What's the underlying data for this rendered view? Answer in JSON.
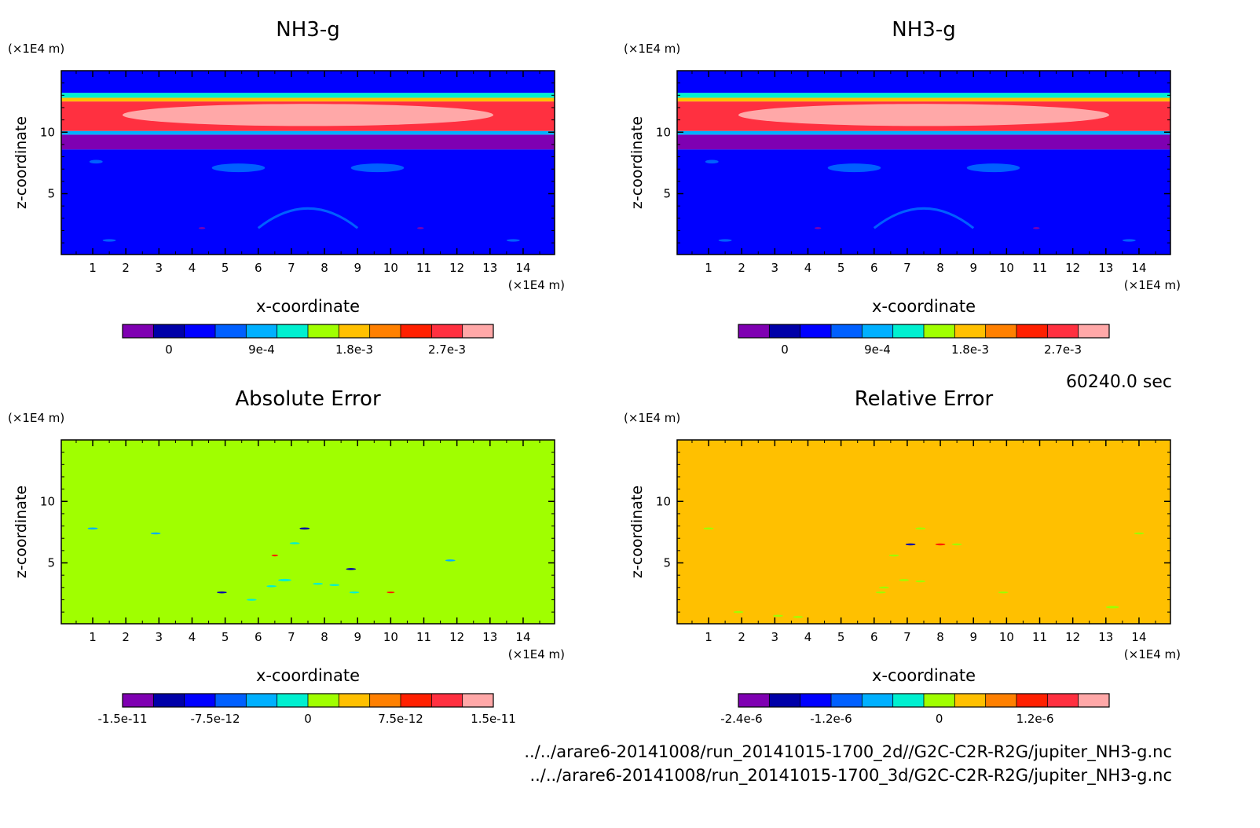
{
  "time_label": "60240.0 sec",
  "file_paths": [
    "../../arare6-20141008/run_20141015-1700_2d//G2C-C2R-R2G/jupiter_NH3-g.nc",
    "../../arare6-20141008/run_20141015-1700_3d/G2C-C2R-R2G/jupiter_NH3-g.nc"
  ],
  "chart_data": [
    {
      "type": "heatmap",
      "title": "NH3-g",
      "xlabel": "x-coordinate",
      "ylabel": "z-coordinate",
      "x_unit": "(×1E4 m)",
      "y_unit": "(×1E4 m)",
      "x_ticks": [
        1,
        2,
        3,
        4,
        5,
        6,
        7,
        8,
        9,
        10,
        11,
        12,
        13,
        14
      ],
      "y_ticks": [
        5,
        10
      ],
      "xlim": [
        0.05,
        14.95
      ],
      "ylim": [
        0.05,
        15
      ],
      "colorbar": {
        "colors": [
          "#7f00b2",
          "#0000a8",
          "#0000ff",
          "#0060ff",
          "#00b0ff",
          "#00f0d0",
          "#a0ff00",
          "#ffc000",
          "#ff8000",
          "#ff2000",
          "#ff3040",
          "#ffa8a8"
        ],
        "tick_values": [
          "0",
          "9e-4",
          "1.8e-3",
          "2.7e-3"
        ],
        "tick_positions": [
          1.5,
          4.5,
          7.5,
          10.5
        ]
      },
      "bands": [
        {
          "z0": 0.05,
          "z1": 8.6,
          "color": "#0000ff"
        },
        {
          "z0": 8.6,
          "z1": 9.8,
          "color": "#7f00b2"
        },
        {
          "z0": 9.8,
          "z1": 10.1,
          "color": "#00b0ff"
        },
        {
          "z0": 10.1,
          "z1": 12.5,
          "color": "#ff3040"
        },
        {
          "z0": 12.5,
          "z1": 12.8,
          "color": "#ffc000"
        },
        {
          "z0": 12.8,
          "z1": 13.2,
          "color": "#00f0d0"
        },
        {
          "z0": 13.2,
          "z1": 15.0,
          "color": "#0000ff"
        }
      ],
      "blobs": [
        {
          "x": 7.5,
          "z": 11.4,
          "rx": 5.6,
          "rz": 0.9,
          "color": "#ffa8a8"
        },
        {
          "x": 7.5,
          "z": 7.0,
          "rx": 6.0,
          "rz": 0.8,
          "color": "#0000ff"
        },
        {
          "x": 5.4,
          "z": 7.1,
          "rx": 0.8,
          "rz": 0.35,
          "color": "#0060ff"
        },
        {
          "x": 9.6,
          "z": 7.1,
          "rx": 0.8,
          "rz": 0.35,
          "color": "#0060ff"
        },
        {
          "x": 1.1,
          "z": 7.6,
          "rx": 0.2,
          "rz": 0.15,
          "color": "#0060ff"
        },
        {
          "x": 4.3,
          "z": 2.2,
          "rx": 0.1,
          "rz": 0.08,
          "color": "#7f00b2"
        },
        {
          "x": 10.9,
          "z": 2.2,
          "rx": 0.1,
          "rz": 0.08,
          "color": "#7f00b2"
        },
        {
          "x": 1.5,
          "z": 1.2,
          "rx": 0.2,
          "rz": 0.1,
          "color": "#0060ff"
        },
        {
          "x": 13.7,
          "z": 1.2,
          "rx": 0.2,
          "rz": 0.1,
          "color": "#0060ff"
        }
      ],
      "arc": {
        "x0": 6.0,
        "x1": 9.0,
        "z_top": 3.8,
        "z_base": 2.2,
        "color": "#0060ff"
      }
    },
    {
      "type": "heatmap",
      "title": "NH3-g",
      "xlabel": "x-coordinate",
      "ylabel": "z-coordinate",
      "x_unit": "(×1E4 m)",
      "y_unit": "(×1E4 m)",
      "x_ticks": [
        1,
        2,
        3,
        4,
        5,
        6,
        7,
        8,
        9,
        10,
        11,
        12,
        13,
        14
      ],
      "y_ticks": [
        5,
        10
      ],
      "xlim": [
        0.05,
        14.95
      ],
      "ylim": [
        0.05,
        15
      ],
      "colorbar": {
        "colors": [
          "#7f00b2",
          "#0000a8",
          "#0000ff",
          "#0060ff",
          "#00b0ff",
          "#00f0d0",
          "#a0ff00",
          "#ffc000",
          "#ff8000",
          "#ff2000",
          "#ff3040",
          "#ffa8a8"
        ],
        "tick_values": [
          "0",
          "9e-4",
          "1.8e-3",
          "2.7e-3"
        ],
        "tick_positions": [
          1.5,
          4.5,
          7.5,
          10.5
        ]
      },
      "bands": [
        {
          "z0": 0.05,
          "z1": 8.6,
          "color": "#0000ff"
        },
        {
          "z0": 8.6,
          "z1": 9.8,
          "color": "#7f00b2"
        },
        {
          "z0": 9.8,
          "z1": 10.1,
          "color": "#00b0ff"
        },
        {
          "z0": 10.1,
          "z1": 12.5,
          "color": "#ff3040"
        },
        {
          "z0": 12.5,
          "z1": 12.8,
          "color": "#ffc000"
        },
        {
          "z0": 12.8,
          "z1": 13.2,
          "color": "#00f0d0"
        },
        {
          "z0": 13.2,
          "z1": 15.0,
          "color": "#0000ff"
        }
      ],
      "blobs": [
        {
          "x": 7.5,
          "z": 11.4,
          "rx": 5.6,
          "rz": 0.9,
          "color": "#ffa8a8"
        },
        {
          "x": 7.5,
          "z": 7.0,
          "rx": 6.0,
          "rz": 0.8,
          "color": "#0000ff"
        },
        {
          "x": 5.4,
          "z": 7.1,
          "rx": 0.8,
          "rz": 0.35,
          "color": "#0060ff"
        },
        {
          "x": 9.6,
          "z": 7.1,
          "rx": 0.8,
          "rz": 0.35,
          "color": "#0060ff"
        },
        {
          "x": 1.1,
          "z": 7.6,
          "rx": 0.2,
          "rz": 0.15,
          "color": "#0060ff"
        },
        {
          "x": 4.3,
          "z": 2.2,
          "rx": 0.1,
          "rz": 0.08,
          "color": "#7f00b2"
        },
        {
          "x": 10.9,
          "z": 2.2,
          "rx": 0.1,
          "rz": 0.08,
          "color": "#7f00b2"
        },
        {
          "x": 1.5,
          "z": 1.2,
          "rx": 0.2,
          "rz": 0.1,
          "color": "#0060ff"
        },
        {
          "x": 13.7,
          "z": 1.2,
          "rx": 0.2,
          "rz": 0.1,
          "color": "#0060ff"
        }
      ],
      "arc": {
        "x0": 6.0,
        "x1": 9.0,
        "z_top": 3.8,
        "z_base": 2.2,
        "color": "#0060ff"
      }
    },
    {
      "type": "heatmap",
      "title": "Absolute Error",
      "xlabel": "x-coordinate",
      "ylabel": "z-coordinate",
      "x_unit": "(×1E4 m)",
      "y_unit": "(×1E4 m)",
      "x_ticks": [
        1,
        2,
        3,
        4,
        5,
        6,
        7,
        8,
        9,
        10,
        11,
        12,
        13,
        14
      ],
      "y_ticks": [
        5,
        10
      ],
      "xlim": [
        0.05,
        14.95
      ],
      "ylim": [
        0.05,
        15
      ],
      "colorbar": {
        "colors": [
          "#7f00b2",
          "#0000a8",
          "#0000ff",
          "#0060ff",
          "#00b0ff",
          "#00f0d0",
          "#a0ff00",
          "#ffc000",
          "#ff8000",
          "#ff2000",
          "#ff3040",
          "#ffa8a8"
        ],
        "tick_values": [
          "-1.5e-11",
          "-7.5e-12",
          "0",
          "7.5e-12",
          "1.5e-11"
        ],
        "tick_positions": [
          0,
          3,
          6,
          9,
          12
        ]
      },
      "bands": [
        {
          "z0": 0.05,
          "z1": 15.0,
          "color": "#a0ff00"
        }
      ],
      "blobs": [
        {
          "x": 1.0,
          "z": 7.8,
          "rx": 0.15,
          "rz": 0.08,
          "color": "#00b0ff"
        },
        {
          "x": 2.9,
          "z": 7.4,
          "rx": 0.15,
          "rz": 0.08,
          "color": "#00b0ff"
        },
        {
          "x": 7.4,
          "z": 7.8,
          "rx": 0.15,
          "rz": 0.08,
          "color": "#0000a8"
        },
        {
          "x": 7.1,
          "z": 6.6,
          "rx": 0.15,
          "rz": 0.08,
          "color": "#00f0d0"
        },
        {
          "x": 6.5,
          "z": 5.6,
          "rx": 0.1,
          "rz": 0.07,
          "color": "#ff2000"
        },
        {
          "x": 8.8,
          "z": 4.5,
          "rx": 0.15,
          "rz": 0.08,
          "color": "#0000a8"
        },
        {
          "x": 11.8,
          "z": 5.2,
          "rx": 0.15,
          "rz": 0.08,
          "color": "#00b0ff"
        },
        {
          "x": 6.8,
          "z": 3.6,
          "rx": 0.2,
          "rz": 0.1,
          "color": "#00f0d0"
        },
        {
          "x": 6.4,
          "z": 3.1,
          "rx": 0.15,
          "rz": 0.08,
          "color": "#00f0d0"
        },
        {
          "x": 7.8,
          "z": 3.3,
          "rx": 0.15,
          "rz": 0.08,
          "color": "#00f0d0"
        },
        {
          "x": 8.3,
          "z": 3.2,
          "rx": 0.15,
          "rz": 0.08,
          "color": "#00f0d0"
        },
        {
          "x": 4.9,
          "z": 2.6,
          "rx": 0.15,
          "rz": 0.08,
          "color": "#0000a8"
        },
        {
          "x": 8.9,
          "z": 2.6,
          "rx": 0.15,
          "rz": 0.08,
          "color": "#00f0d0"
        },
        {
          "x": 10.0,
          "z": 2.6,
          "rx": 0.12,
          "rz": 0.07,
          "color": "#ff2000"
        },
        {
          "x": 5.8,
          "z": 2.0,
          "rx": 0.15,
          "rz": 0.08,
          "color": "#00f0d0"
        }
      ]
    },
    {
      "type": "heatmap",
      "title": "Relative Error",
      "xlabel": "x-coordinate",
      "ylabel": "z-coordinate",
      "x_unit": "(×1E4 m)",
      "y_unit": "(×1E4 m)",
      "x_ticks": [
        1,
        2,
        3,
        4,
        5,
        6,
        7,
        8,
        9,
        10,
        11,
        12,
        13,
        14
      ],
      "y_ticks": [
        5,
        10
      ],
      "xlim": [
        0.05,
        14.95
      ],
      "ylim": [
        0.05,
        15
      ],
      "colorbar": {
        "colors": [
          "#7f00b2",
          "#0000a8",
          "#0000ff",
          "#0060ff",
          "#00b0ff",
          "#00f0d0",
          "#a0ff00",
          "#ffc000",
          "#ff8000",
          "#ff2000",
          "#ff3040",
          "#ffa8a8"
        ],
        "tick_values": [
          "-2.4e-6",
          "-1.2e-6",
          "0",
          "1.2e-6"
        ],
        "tick_positions": [
          0.1,
          3,
          6.5,
          9.6
        ]
      },
      "bands": [
        {
          "z0": 0.05,
          "z1": 15.0,
          "color": "#ffc000"
        }
      ],
      "blobs": [
        {
          "x": 1.0,
          "z": 7.8,
          "rx": 0.15,
          "rz": 0.08,
          "color": "#a0ff00"
        },
        {
          "x": 7.4,
          "z": 7.8,
          "rx": 0.15,
          "rz": 0.08,
          "color": "#a0ff00"
        },
        {
          "x": 7.1,
          "z": 6.5,
          "rx": 0.15,
          "rz": 0.08,
          "color": "#0000a8"
        },
        {
          "x": 8.0,
          "z": 6.5,
          "rx": 0.15,
          "rz": 0.08,
          "color": "#ff2000"
        },
        {
          "x": 8.5,
          "z": 6.5,
          "rx": 0.15,
          "rz": 0.08,
          "color": "#a0ff00"
        },
        {
          "x": 6.6,
          "z": 5.6,
          "rx": 0.15,
          "rz": 0.08,
          "color": "#a0ff00"
        },
        {
          "x": 14.0,
          "z": 7.4,
          "rx": 0.15,
          "rz": 0.08,
          "color": "#a0ff00"
        },
        {
          "x": 6.9,
          "z": 3.6,
          "rx": 0.15,
          "rz": 0.08,
          "color": "#a0ff00"
        },
        {
          "x": 7.4,
          "z": 3.5,
          "rx": 0.15,
          "rz": 0.08,
          "color": "#a0ff00"
        },
        {
          "x": 6.3,
          "z": 3.0,
          "rx": 0.15,
          "rz": 0.08,
          "color": "#a0ff00"
        },
        {
          "x": 6.2,
          "z": 2.6,
          "rx": 0.15,
          "rz": 0.08,
          "color": "#a0ff00"
        },
        {
          "x": 9.9,
          "z": 2.6,
          "rx": 0.15,
          "rz": 0.08,
          "color": "#a0ff00"
        },
        {
          "x": 1.9,
          "z": 1.0,
          "rx": 0.15,
          "rz": 0.08,
          "color": "#a0ff00"
        },
        {
          "x": 3.1,
          "z": 0.7,
          "rx": 0.15,
          "rz": 0.08,
          "color": "#a0ff00"
        },
        {
          "x": 3.7,
          "z": 0.6,
          "rx": 0.15,
          "rz": 0.08,
          "color": "#a0ff00"
        },
        {
          "x": 13.2,
          "z": 1.4,
          "rx": 0.2,
          "rz": 0.1,
          "color": "#a0ff00"
        }
      ]
    }
  ]
}
